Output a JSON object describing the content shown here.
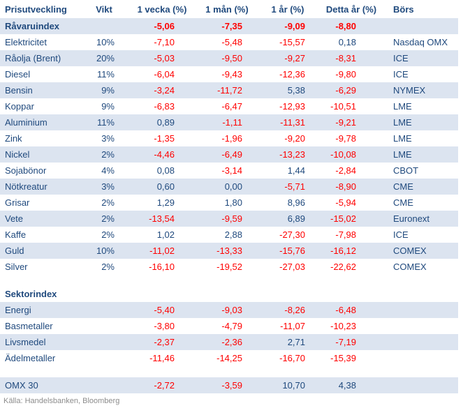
{
  "header": {
    "columns": [
      "Prisutveckling",
      "Vikt",
      "1 vecka (%)",
      "1 mån (%)",
      "1 år (%)",
      "Detta år (%)",
      "Börs"
    ]
  },
  "rows": [
    {
      "label": "Råvaruindex",
      "vikt": "",
      "week": "-5,06",
      "month": "-7,35",
      "year": "-9,09",
      "ytd": "-8,80",
      "bors": "",
      "bold": true,
      "striped": true,
      "spacer": false
    },
    {
      "label": "Elektricitet",
      "vikt": "10%",
      "week": "-7,10",
      "month": "-5,48",
      "year": "-15,57",
      "ytd": "0,18",
      "bors": "Nasdaq OMX",
      "bold": false,
      "striped": false,
      "spacer": false
    },
    {
      "label": "Råolja (Brent)",
      "vikt": "20%",
      "week": "-5,03",
      "month": "-9,50",
      "year": "-9,27",
      "ytd": "-8,31",
      "bors": "ICE",
      "bold": false,
      "striped": true,
      "spacer": false
    },
    {
      "label": "Diesel",
      "vikt": "11%",
      "week": "-6,04",
      "month": "-9,43",
      "year": "-12,36",
      "ytd": "-9,80",
      "bors": "ICE",
      "bold": false,
      "striped": false,
      "spacer": false
    },
    {
      "label": "Bensin",
      "vikt": "9%",
      "week": "-3,24",
      "month": "-11,72",
      "year": "5,38",
      "ytd": "-6,29",
      "bors": "NYMEX",
      "bold": false,
      "striped": true,
      "spacer": false
    },
    {
      "label": "Koppar",
      "vikt": "9%",
      "week": "-6,83",
      "month": "-6,47",
      "year": "-12,93",
      "ytd": "-10,51",
      "bors": "LME",
      "bold": false,
      "striped": false,
      "spacer": false
    },
    {
      "label": "Aluminium",
      "vikt": "11%",
      "week": "0,89",
      "month": "-1,11",
      "year": "-11,31",
      "ytd": "-9,21",
      "bors": "LME",
      "bold": false,
      "striped": true,
      "spacer": false
    },
    {
      "label": "Zink",
      "vikt": "3%",
      "week": "-1,35",
      "month": "-1,96",
      "year": "-9,20",
      "ytd": "-9,78",
      "bors": "LME",
      "bold": false,
      "striped": false,
      "spacer": false
    },
    {
      "label": "Nickel",
      "vikt": "2%",
      "week": "-4,46",
      "month": "-6,49",
      "year": "-13,23",
      "ytd": "-10,08",
      "bors": "LME",
      "bold": false,
      "striped": true,
      "spacer": false
    },
    {
      "label": "Sojabönor",
      "vikt": "4%",
      "week": "0,08",
      "month": "-3,14",
      "year": "1,44",
      "ytd": "-2,84",
      "bors": "CBOT",
      "bold": false,
      "striped": false,
      "spacer": false
    },
    {
      "label": "Nötkreatur",
      "vikt": "3%",
      "week": "0,60",
      "month": "0,00",
      "year": "-5,71",
      "ytd": "-8,90",
      "bors": "CME",
      "bold": false,
      "striped": true,
      "spacer": false
    },
    {
      "label": "Grisar",
      "vikt": "2%",
      "week": "1,29",
      "month": "1,80",
      "year": "8,96",
      "ytd": "-5,94",
      "bors": "CME",
      "bold": false,
      "striped": false,
      "spacer": false
    },
    {
      "label": "Vete",
      "vikt": "2%",
      "week": "-13,54",
      "month": "-9,59",
      "year": "6,89",
      "ytd": "-15,02",
      "bors": "Euronext",
      "bold": false,
      "striped": true,
      "spacer": false
    },
    {
      "label": "Kaffe",
      "vikt": "2%",
      "week": "1,02",
      "month": "2,88",
      "year": "-27,30",
      "ytd": "-7,98",
      "bors": "ICE",
      "bold": false,
      "striped": false,
      "spacer": false
    },
    {
      "label": "Guld",
      "vikt": "10%",
      "week": "-11,02",
      "month": "-13,33",
      "year": "-15,76",
      "ytd": "-16,12",
      "bors": "COMEX",
      "bold": false,
      "striped": true,
      "spacer": false
    },
    {
      "label": "Silver",
      "vikt": "2%",
      "week": "-16,10",
      "month": "-19,52",
      "year": "-27,03",
      "ytd": "-22,62",
      "bors": "COMEX",
      "bold": false,
      "striped": false,
      "spacer": false
    },
    {
      "label": "",
      "vikt": "",
      "week": "",
      "month": "",
      "year": "",
      "ytd": "",
      "bors": "",
      "bold": false,
      "striped": false,
      "spacer": true
    },
    {
      "label": "Sektorindex",
      "vikt": "",
      "week": "",
      "month": "",
      "year": "",
      "ytd": "",
      "bors": "",
      "bold": true,
      "striped": false,
      "spacer": false
    },
    {
      "label": "Energi",
      "vikt": "",
      "week": "-5,40",
      "month": "-9,03",
      "year": "-8,26",
      "ytd": "-6,48",
      "bors": "",
      "bold": false,
      "striped": true,
      "spacer": false
    },
    {
      "label": "Basmetaller",
      "vikt": "",
      "week": "-3,80",
      "month": "-4,79",
      "year": "-11,07",
      "ytd": "-10,23",
      "bors": "",
      "bold": false,
      "striped": false,
      "spacer": false
    },
    {
      "label": "Livsmedel",
      "vikt": "",
      "week": "-2,37",
      "month": "-2,36",
      "year": "2,71",
      "ytd": "-7,19",
      "bors": "",
      "bold": false,
      "striped": true,
      "spacer": false
    },
    {
      "label": "Ädelmetaller",
      "vikt": "",
      "week": "-11,46",
      "month": "-14,25",
      "year": "-16,70",
      "ytd": "-15,39",
      "bors": "",
      "bold": false,
      "striped": false,
      "spacer": false
    },
    {
      "label": "",
      "vikt": "",
      "week": "",
      "month": "",
      "year": "",
      "ytd": "",
      "bors": "",
      "bold": false,
      "striped": false,
      "spacer": true
    },
    {
      "label": "OMX 30",
      "vikt": "",
      "week": "-2,72",
      "month": "-3,59",
      "year": "10,70",
      "ytd": "4,38",
      "bors": "",
      "bold": false,
      "striped": true,
      "spacer": false
    }
  ],
  "footer": {
    "source": "Källa: Handelsbanken, Bloomberg"
  },
  "colors": {
    "text_blue": "#1F497D",
    "negative_red": "#FF0000",
    "row_stripe": "#DCE4F0",
    "source_gray": "#8C8C8C"
  }
}
